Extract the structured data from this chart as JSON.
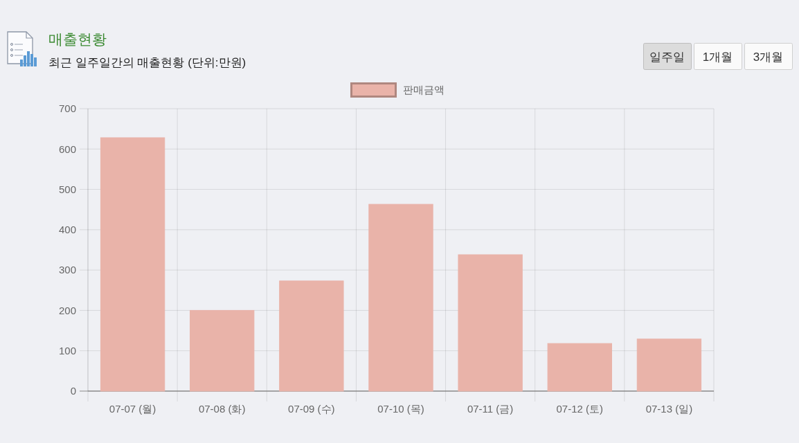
{
  "chart_data": {
    "type": "bar",
    "title": "매출현황",
    "subtitle": "최근 일주일간의 매출현황 (단위:만원)",
    "annotations": [
      "일주일",
      "1개월",
      "3개월"
    ],
    "categories": [
      "07-07 (월)",
      "07-08 (화)",
      "07-09 (수)",
      "07-10 (목)",
      "07-11 (금)",
      "07-12 (토)",
      "07-13 (일)"
    ],
    "series": [
      {
        "name": "판매금액",
        "color": "#e9b3a9",
        "values": [
          628,
          200,
          273,
          463,
          338,
          118,
          129
        ]
      }
    ],
    "ylim": [
      0,
      700
    ],
    "yticks": [
      0,
      100,
      200,
      300,
      400,
      500,
      600,
      700
    ],
    "grid": true,
    "legend": "top"
  }
}
